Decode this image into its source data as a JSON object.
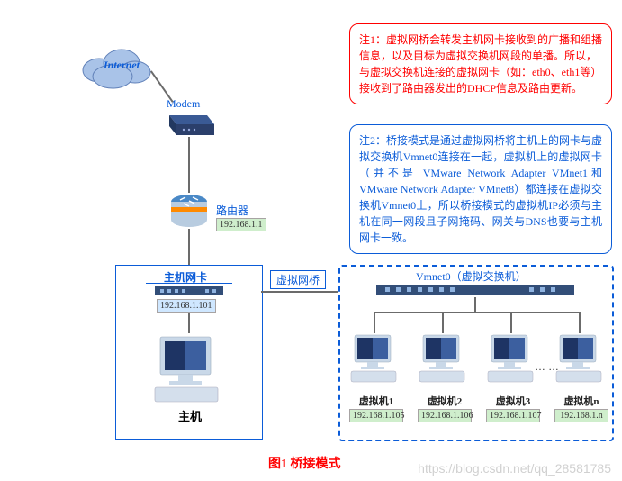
{
  "colors": {
    "blue": "#0b5cd8",
    "red": "#ff0000",
    "cloud_fill": "#a9c3e8",
    "cloud_stroke": "#6080b8",
    "modem": "#2b3f6b",
    "router_top": "#4a89c7",
    "router_body": "#b8cce0",
    "router_stripe": "#ff8a00",
    "switch": "#324e78",
    "pc_body": "#c9d8e8",
    "pc_screen": "#3c5f9f",
    "pc_screen_dark": "#1e3464",
    "ip_green": "#cfeecc",
    "ip_blue": "#cfe7ff",
    "line": "#6b6b6b"
  },
  "internet_label": "Internet",
  "modem_label": "Modem",
  "router_label": "路由器",
  "router_ip": "192.168.1.1",
  "host_nic_label": "主机网卡",
  "host_ip": "192.168.1.101",
  "host_label": "主机",
  "bridge_label": "虚拟网桥",
  "vmnet_label": "Vmnet0（虚拟交换机）",
  "vms": [
    {
      "name": "虚拟机1",
      "ip": "192.168.1.105"
    },
    {
      "name": "虚拟机2",
      "ip": "192.168.1.106"
    },
    {
      "name": "虚拟机3",
      "ip": "192.168.1.107"
    },
    {
      "name": "虚拟机n",
      "ip": "192.168.1.n"
    }
  ],
  "note1": "注1：虚拟网桥会转发主机网卡接收到的广播和组播信息，以及目标为虚拟交换机网段的单播。所以，与虚拟交换机连接的虚拟网卡（如：eth0、eth1等）接收到了路由器发出的DHCP信息及路由更新。",
  "note2": "注2：桥接模式是通过虚拟网桥将主机上的网卡与虚拟交换机Vmnet0连接在一起，虚拟机上的虚拟网卡（并不是 VMware Network Adapter VMnet1和VMware Network Adapter VMnet8）都连接在虚拟交换机Vmnet0上，所以桥接模式的虚拟机IP必须与主机在同一网段且子网掩码、网关与DNS也要与主机网卡一致。",
  "caption": "图1  桥接模式",
  "watermark": "https://blog.csdn.net/qq_28581785"
}
